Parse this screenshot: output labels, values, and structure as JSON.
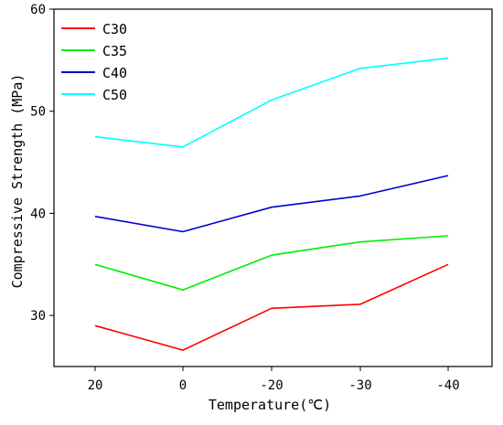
{
  "chart_data": {
    "type": "line",
    "categories": [
      "20",
      "0",
      "-20",
      "-30",
      "-40"
    ],
    "xlabel": "Temperature(℃)",
    "ylabel": "Compressive Strength (MPa)",
    "ylim": [
      25,
      60
    ],
    "yticks": [
      30,
      40,
      50,
      60
    ],
    "grid": false,
    "legend_position": "top-left",
    "series": [
      {
        "name": "C30",
        "color": "#ff0000",
        "values": [
          29.0,
          26.6,
          30.7,
          31.1,
          35.0
        ]
      },
      {
        "name": "C35",
        "color": "#00ee00",
        "values": [
          35.0,
          32.5,
          35.9,
          37.2,
          37.8
        ]
      },
      {
        "name": "C40",
        "color": "#0000cc",
        "values": [
          39.7,
          38.2,
          40.6,
          41.7,
          43.7
        ]
      },
      {
        "name": "C50",
        "color": "#00ffff",
        "values": [
          47.5,
          46.5,
          51.1,
          54.2,
          55.2
        ]
      }
    ]
  }
}
